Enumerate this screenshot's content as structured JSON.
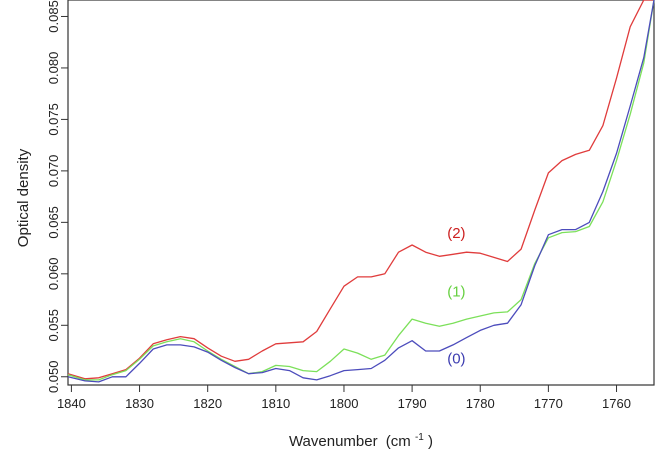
{
  "chart_data": {
    "type": "line",
    "xlabel": "Wavenumber",
    "xlabel_unit_prefix": "(cm",
    "xlabel_unit_exponent": "-1",
    "xlabel_unit_suffix": ")",
    "ylabel": "Optical density",
    "xlim": [
      1840.5,
      1754.5
    ],
    "x_reversed": true,
    "ylim": [
      0.0492,
      0.0866
    ],
    "x_ticks": [
      1840,
      1830,
      1820,
      1810,
      1800,
      1790,
      1780,
      1770,
      1760
    ],
    "y_ticks": [
      "0.050",
      "0.055",
      "0.060",
      "0.065",
      "0.070",
      "0.075",
      "0.080",
      "0.085"
    ],
    "grid": false,
    "series": [
      {
        "name": "(2)",
        "color": "#e03c3c",
        "x": [
          1840.5,
          1838,
          1836,
          1834,
          1832,
          1830,
          1828,
          1826,
          1824,
          1822,
          1820,
          1818,
          1816,
          1814,
          1812,
          1810,
          1808,
          1806,
          1804,
          1802,
          1800,
          1798,
          1796,
          1794,
          1792,
          1790,
          1788,
          1786,
          1784,
          1782,
          1780,
          1778,
          1776,
          1774,
          1772,
          1770,
          1768,
          1766,
          1764,
          1762,
          1760,
          1758,
          1756,
          1754.5
        ],
        "y": [
          0.0503,
          0.0498,
          0.0499,
          0.0503,
          0.0507,
          0.0518,
          0.0532,
          0.0536,
          0.0539,
          0.0537,
          0.0528,
          0.052,
          0.0515,
          0.0517,
          0.0525,
          0.0532,
          0.0533,
          0.0534,
          0.0544,
          0.0566,
          0.0588,
          0.0597,
          0.0597,
          0.06,
          0.0621,
          0.0628,
          0.0621,
          0.0617,
          0.0619,
          0.0621,
          0.062,
          0.0616,
          0.0612,
          0.0624,
          0.0662,
          0.0698,
          0.071,
          0.0716,
          0.072,
          0.0744,
          0.079,
          0.084,
          0.0866,
          0.0866
        ]
      },
      {
        "name": "(1)",
        "color": "#7ce05a",
        "x": [
          1840.5,
          1838,
          1836,
          1834,
          1832,
          1830,
          1828,
          1826,
          1824,
          1822,
          1820,
          1818,
          1816,
          1814,
          1812,
          1810,
          1808,
          1806,
          1804,
          1802,
          1800,
          1798,
          1796,
          1794,
          1792,
          1790,
          1788,
          1786,
          1784,
          1782,
          1780,
          1778,
          1776,
          1774,
          1772,
          1770,
          1768,
          1766,
          1764,
          1762,
          1760,
          1758,
          1756,
          1754.5
        ],
        "y": [
          0.0502,
          0.0497,
          0.0497,
          0.0502,
          0.0506,
          0.0517,
          0.053,
          0.0534,
          0.0537,
          0.0534,
          0.0525,
          0.0517,
          0.051,
          0.0503,
          0.0505,
          0.0511,
          0.051,
          0.0506,
          0.0505,
          0.0515,
          0.0527,
          0.0523,
          0.0517,
          0.0521,
          0.054,
          0.0556,
          0.0552,
          0.0549,
          0.0552,
          0.0556,
          0.0559,
          0.0562,
          0.0563,
          0.0575,
          0.061,
          0.0635,
          0.064,
          0.0641,
          0.0646,
          0.067,
          0.071,
          0.0755,
          0.0805,
          0.0866
        ]
      },
      {
        "name": "(0)",
        "color": "#4c4cbc",
        "x": [
          1840.5,
          1838,
          1836,
          1834,
          1832,
          1830,
          1828,
          1826,
          1824,
          1822,
          1820,
          1818,
          1816,
          1814,
          1812,
          1810,
          1808,
          1806,
          1804,
          1802,
          1800,
          1798,
          1796,
          1794,
          1792,
          1790,
          1788,
          1786,
          1784,
          1782,
          1780,
          1778,
          1776,
          1774,
          1772,
          1770,
          1768,
          1766,
          1764,
          1762,
          1760,
          1758,
          1756,
          1754.5
        ],
        "y": [
          0.05,
          0.0496,
          0.0495,
          0.05,
          0.05,
          0.0513,
          0.0527,
          0.0531,
          0.0531,
          0.0529,
          0.0524,
          0.0516,
          0.0509,
          0.0503,
          0.0504,
          0.0508,
          0.0506,
          0.0499,
          0.0497,
          0.0501,
          0.0506,
          0.0507,
          0.0508,
          0.0516,
          0.0528,
          0.0535,
          0.0525,
          0.0525,
          0.0531,
          0.0538,
          0.0545,
          0.055,
          0.0552,
          0.057,
          0.0608,
          0.0638,
          0.0643,
          0.0643,
          0.065,
          0.068,
          0.0717,
          0.0763,
          0.081,
          0.0866
        ]
      }
    ],
    "annotations": [
      {
        "text": "(2)",
        "color": "#cc2020",
        "x": 1783.5,
        "y": 0.0635
      },
      {
        "text": "(1)",
        "color": "#66d040",
        "x": 1783.5,
        "y": 0.0578
      },
      {
        "text": "(0)",
        "color": "#3b3bb0",
        "x": 1783.5,
        "y": 0.0513
      }
    ]
  }
}
